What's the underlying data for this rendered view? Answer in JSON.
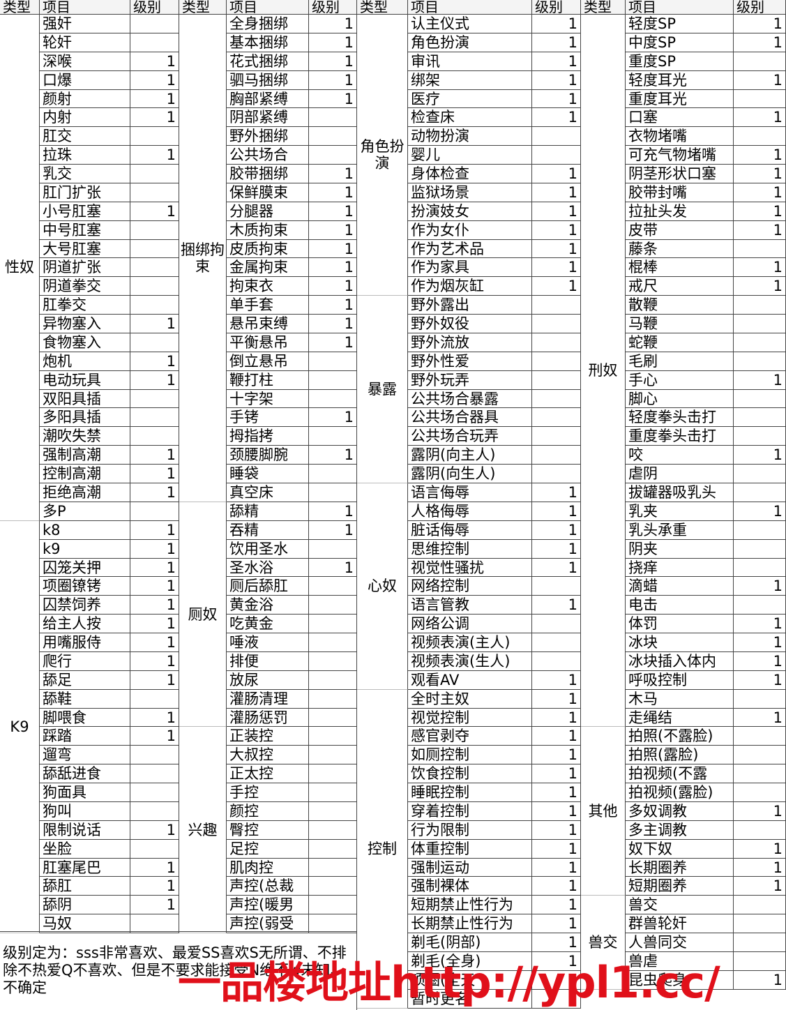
{
  "header": [
    "类型",
    "项目",
    "级别"
  ],
  "groups": [
    {
      "sections": [
        {
          "type": "性奴",
          "items": [
            [
              "强奸",
              null
            ],
            [
              "轮奸",
              null
            ],
            [
              "深喉",
              1
            ],
            [
              "口爆",
              1
            ],
            [
              "颜射",
              1
            ],
            [
              "内射",
              1
            ],
            [
              "肛交",
              null
            ],
            [
              "拉珠",
              1
            ],
            [
              "乳交",
              null
            ],
            [
              "肛门扩张",
              null
            ],
            [
              "小号肛塞",
              1
            ],
            [
              "中号肛塞",
              null
            ],
            [
              "大号肛塞",
              null
            ],
            [
              "阴道扩张",
              null
            ],
            [
              "阴道拳交",
              null
            ],
            [
              "肛拳交",
              null
            ],
            [
              "异物塞入",
              1
            ],
            [
              "食物塞入",
              null
            ],
            [
              "炮机",
              1
            ],
            [
              "电动玩具",
              1
            ],
            [
              "双阳具插",
              null
            ],
            [
              "多阳具插",
              null
            ],
            [
              "潮吹失禁",
              null
            ],
            [
              "强制高潮",
              1
            ],
            [
              "控制高潮",
              1
            ],
            [
              "拒绝高潮",
              1
            ],
            [
              "多P",
              null
            ]
          ]
        },
        {
          "type": "K9",
          "items": [
            [
              "k8",
              1
            ],
            [
              "k9",
              1
            ],
            [
              "囚笼关押",
              1
            ],
            [
              "项圈镣铐",
              1
            ],
            [
              "囚禁饲养",
              1
            ],
            [
              "给主人按",
              1
            ],
            [
              "用嘴服侍",
              1
            ],
            [
              "爬行",
              1
            ],
            [
              "舔足",
              1
            ],
            [
              "舔鞋",
              null
            ],
            [
              "脚喂食",
              1
            ],
            [
              "踩踏",
              1
            ],
            [
              "遛弯",
              null
            ],
            [
              "舔舐进食",
              null
            ],
            [
              "狗面具",
              null
            ],
            [
              "狗叫",
              null
            ],
            [
              "限制说话",
              1
            ],
            [
              "坐脸",
              null
            ],
            [
              "肛塞尾巴",
              1
            ],
            [
              "舔肛",
              1
            ],
            [
              "舔阴",
              1
            ],
            [
              "马奴",
              null
            ]
          ]
        }
      ]
    },
    {
      "sections": [
        {
          "type": "捆绑拘束",
          "items": [
            [
              "全身捆绑",
              1
            ],
            [
              "基本捆绑",
              1
            ],
            [
              "花式捆绑",
              1
            ],
            [
              "驷马捆绑",
              1
            ],
            [
              "胸部紧缚",
              1
            ],
            [
              "阴部紧缚",
              null
            ],
            [
              "野外捆绑",
              null
            ],
            [
              "公共场合",
              null
            ],
            [
              "胶带捆绑",
              1
            ],
            [
              "保鲜膜束",
              1
            ],
            [
              "分腿器",
              1
            ],
            [
              "木质拘束",
              1
            ],
            [
              "皮质拘束",
              1
            ],
            [
              "金属拘束",
              1
            ],
            [
              "拘束衣",
              1
            ],
            [
              "单手套",
              1
            ],
            [
              "悬吊束缚",
              1
            ],
            [
              "平衡悬吊",
              1
            ],
            [
              "倒立悬吊",
              null
            ],
            [
              "鞭打柱",
              null
            ],
            [
              "十字架",
              null
            ],
            [
              "手铐",
              1
            ],
            [
              "拇指拷",
              null
            ],
            [
              "颈腰脚腕",
              1
            ],
            [
              "睡袋",
              null
            ],
            [
              "真空床",
              null
            ]
          ]
        },
        {
          "type": "厕奴",
          "items": [
            [
              "舔精",
              1
            ],
            [
              "吞精",
              1
            ],
            [
              "饮用圣水",
              null
            ],
            [
              "圣水浴",
              1
            ],
            [
              "厕后舔肛",
              null
            ],
            [
              "黄金浴",
              null
            ],
            [
              "吃黄金",
              null
            ],
            [
              "唾液",
              null
            ],
            [
              "排便",
              null
            ],
            [
              "放尿",
              null
            ],
            [
              "灌肠清理",
              null
            ],
            [
              "灌肠惩罚",
              null
            ]
          ]
        },
        {
          "type": "兴趣",
          "items": [
            [
              "正装控",
              null
            ],
            [
              "大叔控",
              null
            ],
            [
              "正太控",
              null
            ],
            [
              "手控",
              null
            ],
            [
              "颜控",
              null
            ],
            [
              "臀控",
              null
            ],
            [
              "足控",
              null
            ],
            [
              "肌肉控",
              null
            ],
            [
              "声控(总裁",
              null
            ],
            [
              "声控(暖男",
              null
            ],
            [
              "声控(弱受",
              null
            ]
          ]
        }
      ]
    },
    {
      "sections": [
        {
          "type": "角色扮演",
          "items": [
            [
              "认主仪式",
              1
            ],
            [
              "角色扮演",
              1
            ],
            [
              "审讯",
              1
            ],
            [
              "绑架",
              1
            ],
            [
              "医疗",
              1
            ],
            [
              "检查床",
              1
            ],
            [
              "动物扮演",
              null
            ],
            [
              "婴儿",
              null
            ],
            [
              "身体检查",
              1
            ],
            [
              "监狱场景",
              1
            ],
            [
              "扮演妓女",
              1
            ],
            [
              "作为女仆",
              1
            ],
            [
              "作为艺术品",
              1
            ],
            [
              "作为家具",
              1
            ],
            [
              "作为烟灰缸",
              1
            ]
          ]
        },
        {
          "type": "暴露",
          "items": [
            [
              "野外露出",
              null
            ],
            [
              "野外奴役",
              null
            ],
            [
              "野外流放",
              null
            ],
            [
              "野外性爱",
              null
            ],
            [
              "野外玩弄",
              null
            ],
            [
              "公共场合暴露",
              null
            ],
            [
              "公共场合器具",
              null
            ],
            [
              "公共场合玩弄",
              null
            ],
            [
              "露阴(向主人)",
              null
            ],
            [
              "露阴(向生人)",
              null
            ]
          ]
        },
        {
          "type": "心奴",
          "items": [
            [
              "语言侮辱",
              1
            ],
            [
              "人格侮辱",
              1
            ],
            [
              "脏话侮辱",
              1
            ],
            [
              "思维控制",
              1
            ],
            [
              "视觉性骚扰",
              1
            ],
            [
              "网络控制",
              null
            ],
            [
              "语言管教",
              1
            ],
            [
              "网络公调",
              null
            ],
            [
              "视频表演(主人)",
              null
            ],
            [
              "视频表演(生人)",
              null
            ],
            [
              "观看AV",
              1
            ]
          ]
        },
        {
          "type": "控制",
          "items": [
            [
              "全时主奴",
              1
            ],
            [
              "视觉控制",
              1
            ],
            [
              "感官剥夺",
              1
            ],
            [
              "如厕控制",
              1
            ],
            [
              "饮食控制",
              1
            ],
            [
              "睡眠控制",
              1
            ],
            [
              "穿着控制",
              1
            ],
            [
              "行为限制",
              1
            ],
            [
              "体重控制",
              1
            ],
            [
              "强制运动",
              1
            ],
            [
              "强制裸体",
              1
            ],
            [
              "短期禁止性行为",
              1
            ],
            [
              "长期禁止性行为",
              1
            ],
            [
              "剃毛(阴部)",
              1
            ],
            [
              "剃毛(全身)",
              1
            ],
            [
              "项圈(全天",
              null
            ],
            [
              "暂时更名",
              1
            ]
          ]
        }
      ]
    },
    {
      "sections": [
        {
          "type": "刑奴",
          "items": [
            [
              "轻度SP",
              1
            ],
            [
              "中度SP",
              1
            ],
            [
              "重度SP",
              null
            ],
            [
              "轻度耳光",
              1
            ],
            [
              "重度耳光",
              null
            ],
            [
              "口塞",
              1
            ],
            [
              "衣物堵嘴",
              null
            ],
            [
              "可充气物堵嘴",
              1
            ],
            [
              "阴茎形状口塞",
              1
            ],
            [
              "胶带封嘴",
              1
            ],
            [
              "拉扯头发",
              1
            ],
            [
              "皮带",
              1
            ],
            [
              "藤条",
              null
            ],
            [
              "棍棒",
              1
            ],
            [
              "戒尺",
              1
            ],
            [
              "散鞭",
              null
            ],
            [
              "马鞭",
              null
            ],
            [
              "蛇鞭",
              null
            ],
            [
              "毛刷",
              null
            ],
            [
              "手心",
              1
            ],
            [
              "脚心",
              null
            ],
            [
              "轻度拳头击打",
              null
            ],
            [
              "重度拳头击打",
              null
            ],
            [
              "咬",
              1
            ],
            [
              "虐阴",
              null
            ],
            [
              "拔罐器吸乳头",
              null
            ],
            [
              "乳夹",
              1
            ],
            [
              "乳头承重",
              null
            ],
            [
              "阴夹",
              null
            ],
            [
              "挠痒",
              null
            ],
            [
              "滴蜡",
              1
            ],
            [
              "电击",
              null
            ],
            [
              "体罚",
              1
            ],
            [
              "冰块",
              1
            ],
            [
              "冰块插入体内",
              1
            ],
            [
              "呼吸控制",
              1
            ],
            [
              "木马",
              null
            ],
            [
              "走绳结",
              1
            ]
          ]
        },
        {
          "type": "其他",
          "items": [
            [
              "拍照(不露脸)",
              null
            ],
            [
              "拍照(露脸)",
              null
            ],
            [
              "拍视频(不露",
              null
            ],
            [
              "拍视频(露脸)",
              null
            ],
            [
              "多奴调教",
              1
            ],
            [
              "多主调教",
              null
            ],
            [
              "奴下奴",
              1
            ],
            [
              "长期圈养",
              1
            ],
            [
              "短期圈养",
              1
            ]
          ]
        },
        {
          "type": "兽交",
          "items": [
            [
              "兽交",
              null
            ],
            [
              "群兽轮奸",
              null
            ],
            [
              "人兽同交",
              null
            ],
            [
              "兽虐",
              null
            ],
            [
              "昆虫爬身",
              1
            ]
          ]
        }
      ]
    }
  ],
  "note": "级别定为：sss非常喜欢、最爱SS喜欢S无所谓、不排除不热爱Q不喜欢、但是不要求能接受N绝不w未知、不确定",
  "watermark": "一品楼地址http://ypl1.cc/"
}
